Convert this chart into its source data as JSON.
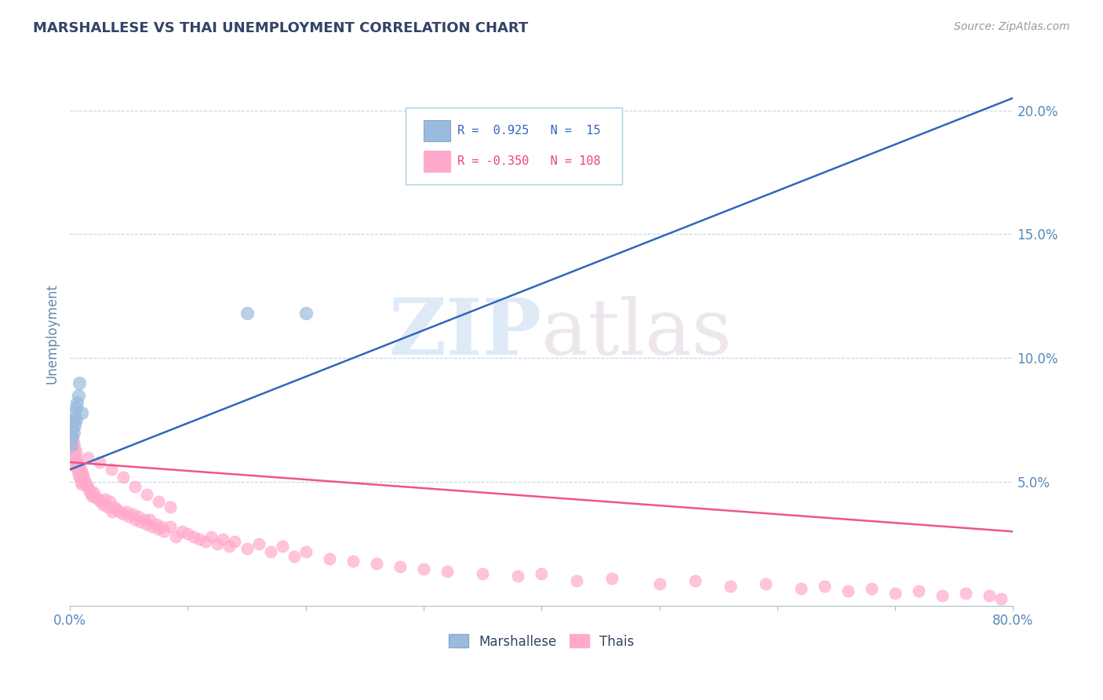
{
  "title": "MARSHALLESE VS THAI UNEMPLOYMENT CORRELATION CHART",
  "source": "Source: ZipAtlas.com",
  "ylabel": "Unemployment",
  "xlim": [
    0,
    0.8
  ],
  "ylim": [
    0,
    0.22
  ],
  "yticks": [
    0.05,
    0.1,
    0.15,
    0.2
  ],
  "ytick_labels": [
    "5.0%",
    "10.0%",
    "15.0%",
    "20.0%"
  ],
  "xticks": [
    0,
    0.1,
    0.2,
    0.3,
    0.4,
    0.5,
    0.6,
    0.7,
    0.8
  ],
  "xtick_labels": [
    "0.0%",
    "",
    "",
    "",
    "",
    "",
    "",
    "",
    "80.0%"
  ],
  "marshallese_color": "#99BBDD",
  "thais_color": "#FFAACC",
  "trend_blue": "#3366BB",
  "trend_pink": "#EE5588",
  "watermark_zip": "ZIP",
  "watermark_atlas": "atlas",
  "marshallese_x": [
    0.001,
    0.002,
    0.002,
    0.003,
    0.003,
    0.004,
    0.004,
    0.005,
    0.005,
    0.006,
    0.007,
    0.008,
    0.01,
    0.15,
    0.2
  ],
  "marshallese_y": [
    0.065,
    0.068,
    0.072,
    0.07,
    0.075,
    0.073,
    0.078,
    0.075,
    0.08,
    0.082,
    0.085,
    0.09,
    0.078,
    0.118,
    0.118
  ],
  "thais_x": [
    0.001,
    0.002,
    0.002,
    0.003,
    0.003,
    0.003,
    0.004,
    0.004,
    0.005,
    0.005,
    0.005,
    0.006,
    0.006,
    0.007,
    0.007,
    0.008,
    0.008,
    0.009,
    0.009,
    0.01,
    0.01,
    0.011,
    0.012,
    0.013,
    0.014,
    0.015,
    0.016,
    0.017,
    0.018,
    0.019,
    0.02,
    0.022,
    0.024,
    0.026,
    0.028,
    0.03,
    0.032,
    0.034,
    0.036,
    0.038,
    0.04,
    0.042,
    0.045,
    0.048,
    0.05,
    0.053,
    0.055,
    0.058,
    0.06,
    0.063,
    0.065,
    0.068,
    0.07,
    0.073,
    0.075,
    0.078,
    0.08,
    0.085,
    0.09,
    0.095,
    0.1,
    0.105,
    0.11,
    0.115,
    0.12,
    0.125,
    0.13,
    0.135,
    0.14,
    0.15,
    0.16,
    0.17,
    0.18,
    0.19,
    0.2,
    0.22,
    0.24,
    0.26,
    0.28,
    0.3,
    0.32,
    0.35,
    0.38,
    0.4,
    0.43,
    0.46,
    0.5,
    0.53,
    0.56,
    0.59,
    0.62,
    0.64,
    0.66,
    0.68,
    0.7,
    0.72,
    0.74,
    0.76,
    0.78,
    0.79,
    0.015,
    0.025,
    0.035,
    0.045,
    0.055,
    0.065,
    0.075,
    0.085
  ],
  "thais_y": [
    0.065,
    0.063,
    0.068,
    0.062,
    0.066,
    0.06,
    0.064,
    0.058,
    0.062,
    0.056,
    0.06,
    0.058,
    0.055,
    0.057,
    0.053,
    0.056,
    0.052,
    0.055,
    0.05,
    0.054,
    0.049,
    0.053,
    0.051,
    0.05,
    0.049,
    0.048,
    0.047,
    0.046,
    0.045,
    0.044,
    0.046,
    0.044,
    0.043,
    0.042,
    0.041,
    0.043,
    0.04,
    0.042,
    0.038,
    0.04,
    0.039,
    0.038,
    0.037,
    0.038,
    0.036,
    0.037,
    0.035,
    0.036,
    0.034,
    0.035,
    0.033,
    0.035,
    0.032,
    0.033,
    0.031,
    0.032,
    0.03,
    0.032,
    0.028,
    0.03,
    0.029,
    0.028,
    0.027,
    0.026,
    0.028,
    0.025,
    0.027,
    0.024,
    0.026,
    0.023,
    0.025,
    0.022,
    0.024,
    0.02,
    0.022,
    0.019,
    0.018,
    0.017,
    0.016,
    0.015,
    0.014,
    0.013,
    0.012,
    0.013,
    0.01,
    0.011,
    0.009,
    0.01,
    0.008,
    0.009,
    0.007,
    0.008,
    0.006,
    0.007,
    0.005,
    0.006,
    0.004,
    0.005,
    0.004,
    0.003,
    0.06,
    0.058,
    0.055,
    0.052,
    0.048,
    0.045,
    0.042,
    0.04
  ],
  "blue_trend_x": [
    0.0,
    0.8
  ],
  "blue_trend_y": [
    0.055,
    0.205
  ],
  "pink_trend_x": [
    0.0,
    0.8
  ],
  "pink_trend_y": [
    0.058,
    0.03
  ]
}
